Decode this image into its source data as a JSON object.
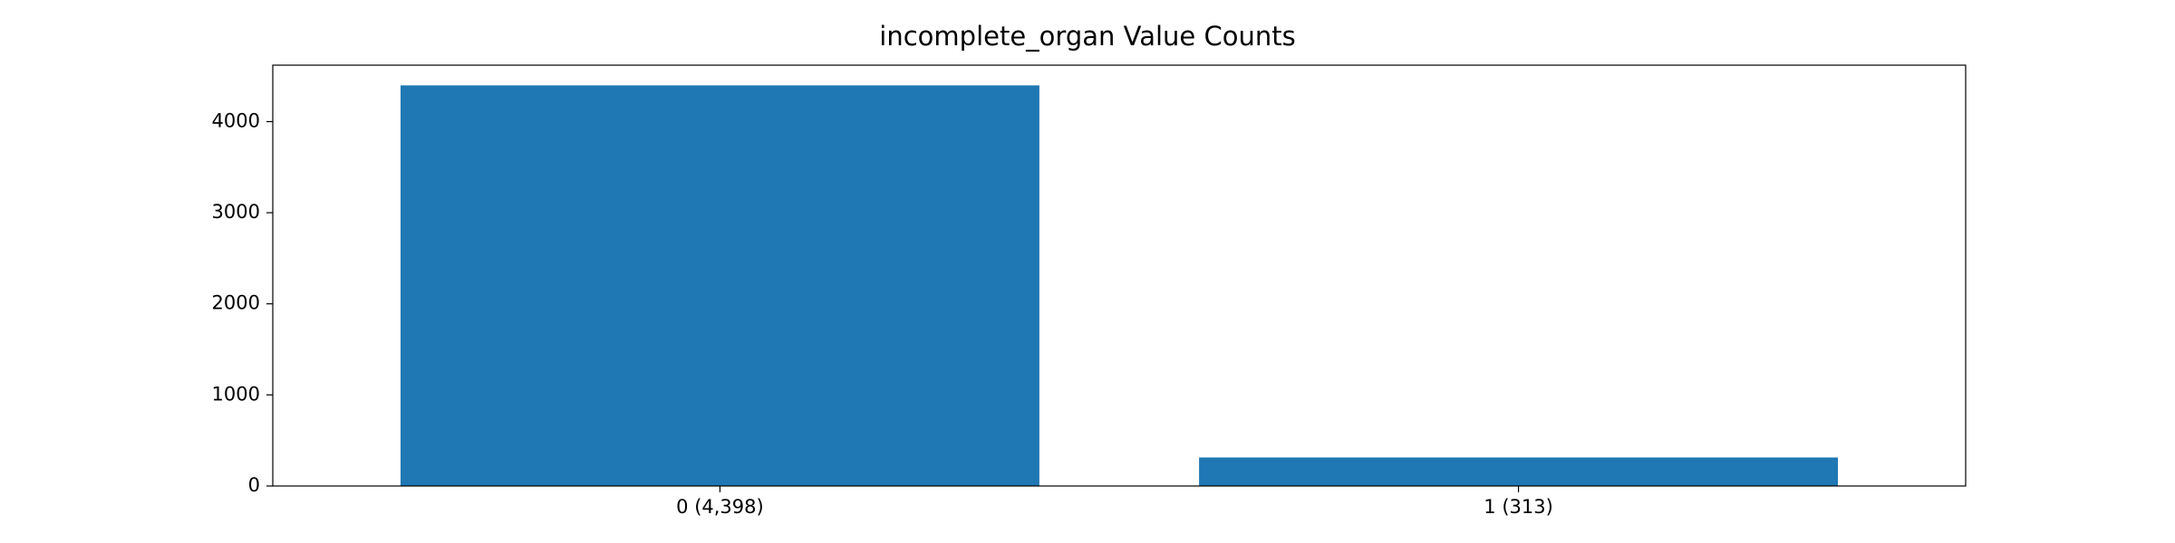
{
  "chart_data": {
    "type": "bar",
    "title": "incomplete_organ Value Counts",
    "xlabel": "",
    "ylabel": "",
    "categories": [
      "0 (4,398)",
      "1 (313)"
    ],
    "values": [
      4398,
      313
    ],
    "ylim": [
      0,
      4620
    ],
    "yticks": [
      0,
      1000,
      2000,
      3000,
      4000
    ],
    "grid": false,
    "legend": "none",
    "bar_color": "#1f77b4"
  }
}
